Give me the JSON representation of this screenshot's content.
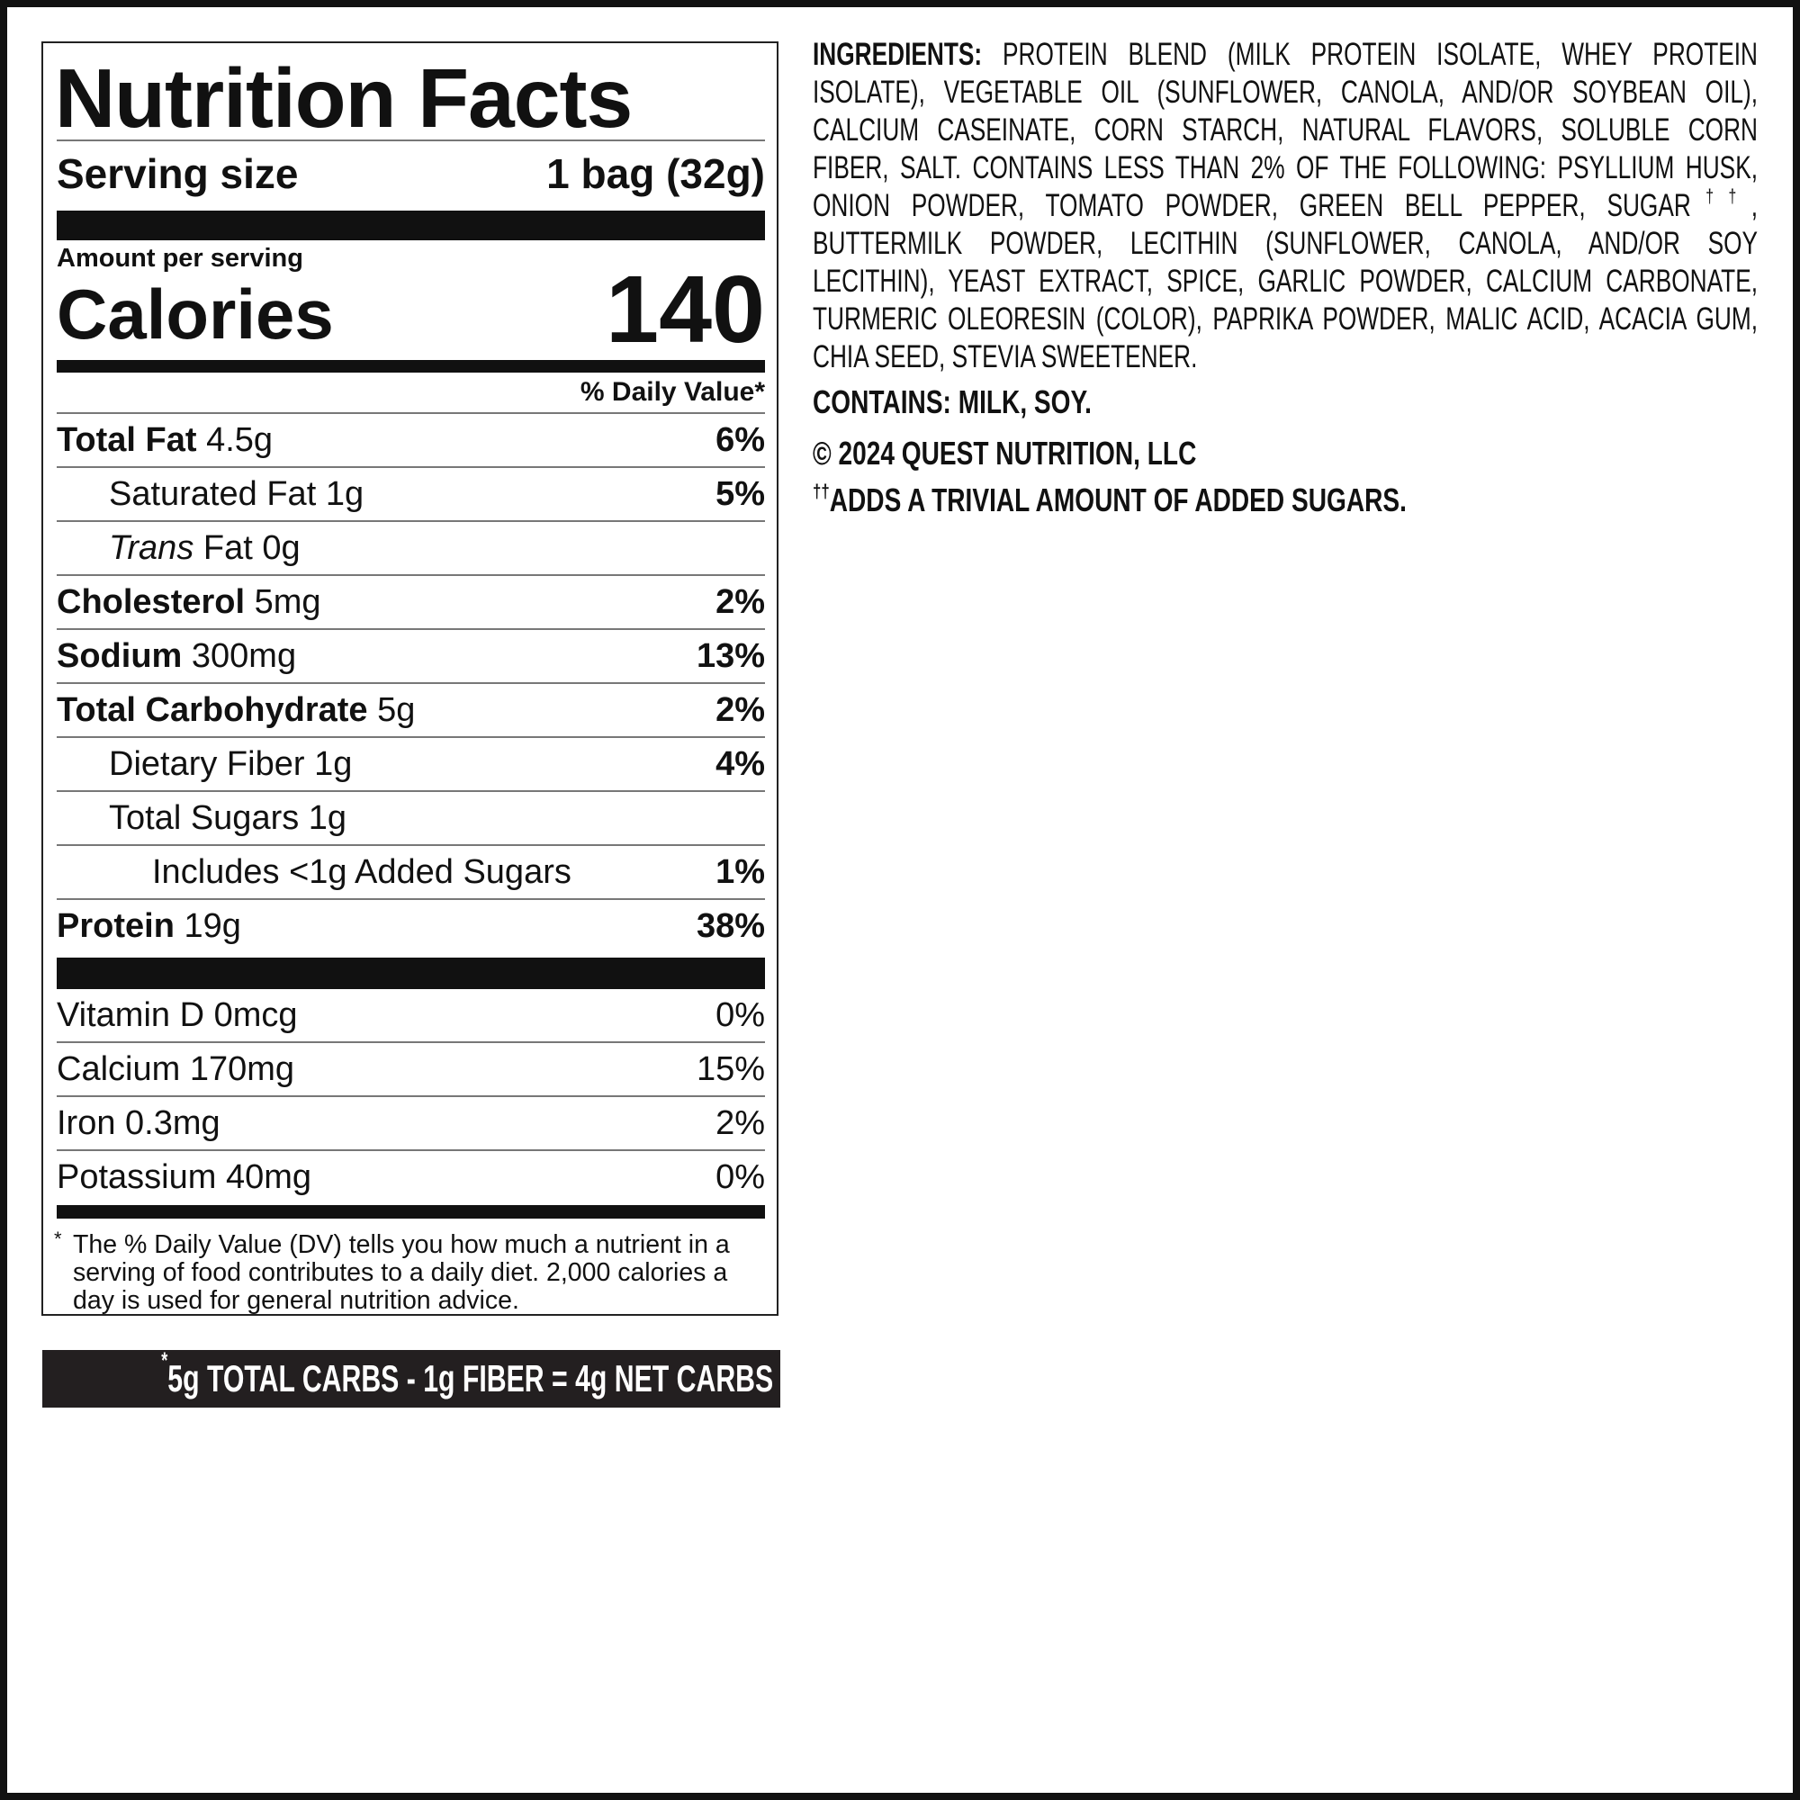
{
  "label": {
    "title": "Nutrition Facts",
    "serving_size": {
      "label": "Serving size",
      "value": "1 bag (32g)"
    },
    "amount_per_serving": "Amount per serving",
    "calories": {
      "label": "Calories",
      "value": "140"
    },
    "daily_value_header": "% Daily Value*",
    "nutrients": [
      {
        "name": "Total Fat",
        "amount": "4.5g",
        "dv": "6%",
        "bold": true,
        "indent": 0
      },
      {
        "name": "Saturated Fat",
        "amount": "1g",
        "dv": "5%",
        "bold": false,
        "indent": 1
      },
      {
        "italic_prefix": "Trans",
        "name": "Fat",
        "amount": "0g",
        "bold": false,
        "indent": 1
      },
      {
        "name": "Cholesterol",
        "amount": "5mg",
        "dv": "2%",
        "bold": true,
        "indent": 0
      },
      {
        "name": "Sodium",
        "amount": "300mg",
        "dv": "13%",
        "bold": true,
        "indent": 0
      },
      {
        "name": "Total Carbohydrate",
        "amount": "5g",
        "dv": "2%",
        "bold": true,
        "indent": 0
      },
      {
        "name": "Dietary Fiber",
        "amount": "1g",
        "dv": "4%",
        "bold": false,
        "indent": 1
      },
      {
        "name": "Total Sugars",
        "amount": "1g",
        "bold": false,
        "indent": 1
      },
      {
        "name": "Includes <1g Added Sugars",
        "dv": "1%",
        "bold": false,
        "indent": 2
      },
      {
        "name": "Protein",
        "amount": "19g",
        "dv": "38%",
        "bold": true,
        "indent": 0
      }
    ],
    "vitamins": [
      {
        "name": "Vitamin D",
        "amount": "0mcg",
        "dv": "0%"
      },
      {
        "name": "Calcium",
        "amount": "170mg",
        "dv": "15%"
      },
      {
        "name": "Iron",
        "amount": "0.3mg",
        "dv": "2%"
      },
      {
        "name": "Potassium",
        "amount": "40mg",
        "dv": "0%"
      }
    ],
    "footnote": {
      "mark": "*",
      "text": "The % Daily Value (DV) tells you how much a nutrient in a serving of food contributes to a daily diet. 2,000 calories a day is used for general nutrition advice."
    }
  },
  "net_carbs": {
    "mark": "*",
    "text": "5g TOTAL CARBS - 1g FIBER = 4g NET CARBS"
  },
  "ingredients": {
    "label": "INGREDIENTS:",
    "text": [
      "PROTEIN BLEND (MILK PROTEIN ISOLATE, WHEY PROTEIN ISOLATE), VEGETABLE OIL (SUNFLOWER, CANOLA, AND/OR SOYBEAN OIL), CALCIUM CASEINATE, CORN STARCH, NATURAL FLAVORS, SOLUBLE CORN FIBER, SALT. CONTAINS LESS THAN 2% OF THE FOLLOWING: PSYLLIUM HUSK, ONION POWDER, TOMATO POWDER, GREEN BELL PEPPER, SUGAR",
      "††",
      ", BUTTERMILK POWDER, LECITHIN (SUNFLOWER, CANOLA, AND/OR SOY LECITHIN), YEAST EXTRACT, SPICE, GARLIC POWDER, CALCIUM CARBONATE, TURMERIC OLEORESIN (COLOR), PAPRIKA POWDER, MALIC ACID, ACACIA GUM, CHIA SEED, STEVIA SWEETENER."
    ]
  },
  "contains": "CONTAINS: MILK, SOY.",
  "copyright": "© 2024 QUEST NUTRITION, LLC",
  "sugar_note": {
    "mark": "††",
    "text": "ADDS A TRIVIAL AMOUNT OF ADDED SUGARS."
  }
}
